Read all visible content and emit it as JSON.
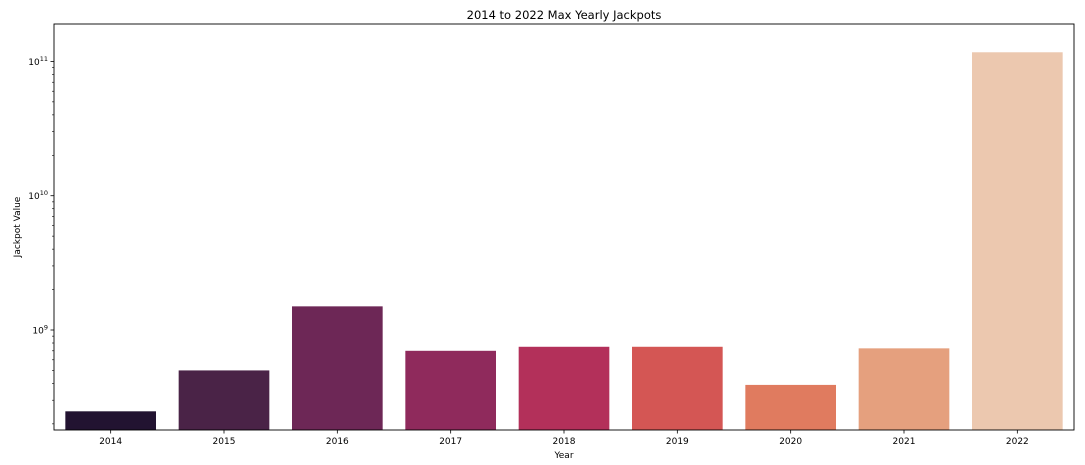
{
  "chart_data": {
    "type": "bar",
    "title": "2014 to 2022 Max Yearly Jackpots",
    "xlabel": "Year",
    "ylabel": "Jackpot Value",
    "yscale": "log",
    "ylim": [
      180000000,
      190000000000
    ],
    "y_tick_labels": [
      {
        "value": 1000000000,
        "base": "10",
        "exp": "9"
      },
      {
        "value": 10000000000,
        "base": "10",
        "exp": "10"
      },
      {
        "value": 100000000000,
        "base": "10",
        "exp": "11"
      }
    ],
    "categories": [
      "2014",
      "2015",
      "2016",
      "2017",
      "2018",
      "2019",
      "2020",
      "2021",
      "2022"
    ],
    "values": [
      248000000,
      500000000,
      1500000000,
      700000000,
      750000000,
      750000000,
      390000000,
      730000000,
      117000000000
    ],
    "colors": [
      "#221331",
      "#4a2347",
      "#6d2756",
      "#8f2a5c",
      "#b3305a",
      "#d45654",
      "#e07b5f",
      "#e5a07e",
      "#ecc8af"
    ],
    "grid": false,
    "legend": "none"
  }
}
